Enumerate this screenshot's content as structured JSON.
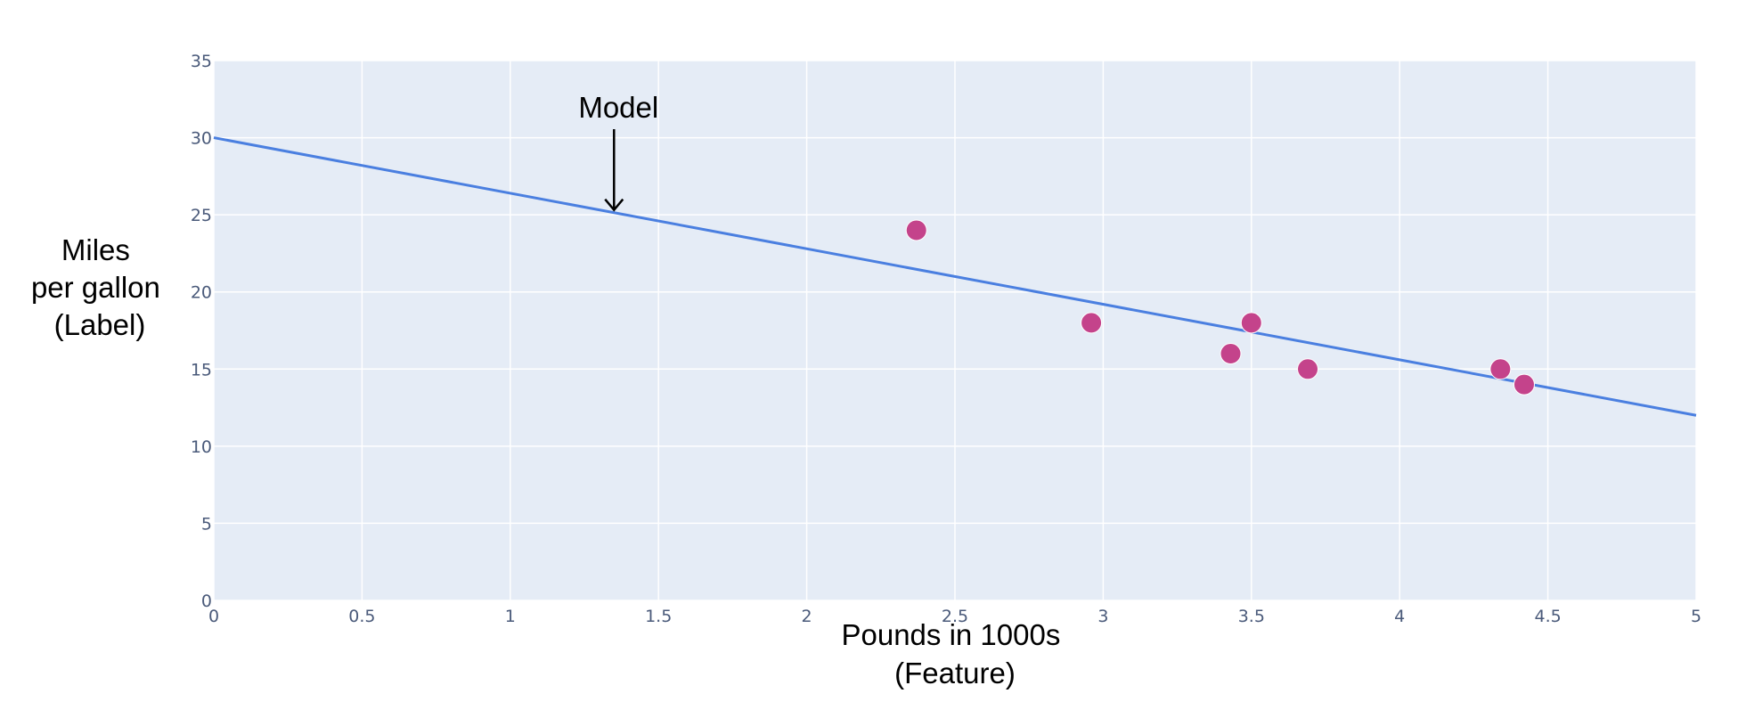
{
  "chart_data": {
    "type": "scatter",
    "xlabel": [
      "Pounds in 1000s",
      "(Feature)"
    ],
    "ylabel": [
      "Miles",
      "per gallon",
      "(Label)"
    ],
    "xlim": [
      0,
      5
    ],
    "ylim": [
      0,
      35
    ],
    "x_ticks": [
      0,
      0.5,
      1,
      1.5,
      2,
      2.5,
      3,
      3.5,
      4,
      4.5,
      5
    ],
    "x_tick_labels": [
      "0",
      "0.5",
      "1",
      "1.5",
      "2",
      "2.5",
      "3",
      "3.5",
      "4",
      "4.5",
      "5"
    ],
    "y_ticks": [
      0,
      5,
      10,
      15,
      20,
      25,
      30,
      35
    ],
    "y_tick_labels": [
      "0",
      "5",
      "10",
      "15",
      "20",
      "25",
      "30",
      "35"
    ],
    "grid": true,
    "points": [
      {
        "x": 2.37,
        "y": 24
      },
      {
        "x": 2.96,
        "y": 18
      },
      {
        "x": 3.43,
        "y": 16
      },
      {
        "x": 3.5,
        "y": 18
      },
      {
        "x": 3.69,
        "y": 15
      },
      {
        "x": 4.34,
        "y": 15
      },
      {
        "x": 4.42,
        "y": 14
      }
    ],
    "line": {
      "x": [
        0,
        5
      ],
      "y": [
        30,
        12
      ]
    },
    "annotation": {
      "text": "Model",
      "x": 1.35
    },
    "colors": {
      "plot_background": "#e5ecf6",
      "grid": "#ffffff",
      "line": "#4a7fe0",
      "points": "#c4438b",
      "tick_text": "#4a5a7a"
    }
  }
}
